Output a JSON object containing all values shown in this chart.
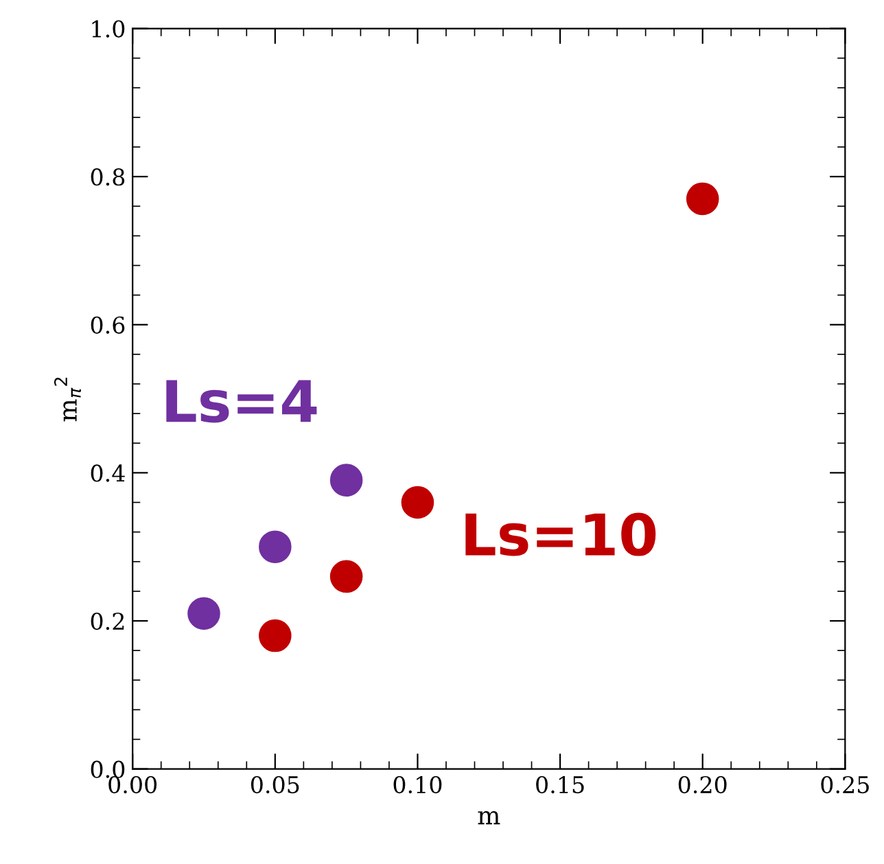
{
  "chart_data": {
    "type": "scatter",
    "xlabel": "m",
    "ylabel": "m$_{π}$$^{2}$",
    "series": [
      {
        "name": "Ls=4",
        "color": "#7030a0",
        "x": [
          0.025,
          0.05,
          0.075
        ],
        "values": [
          0.21,
          0.3,
          0.39
        ]
      },
      {
        "name": "Ls=10",
        "color": "#c00000",
        "x": [
          0.05,
          0.075,
          0.1,
          0.2
        ],
        "values": [
          0.18,
          0.26,
          0.36,
          0.77
        ]
      }
    ],
    "xlim": [
      0.0,
      0.25
    ],
    "xticks": [
      {
        "value": 0.0,
        "label": "0.00"
      },
      {
        "value": 0.05,
        "label": "0.05"
      },
      {
        "value": 0.1,
        "label": "0.10"
      },
      {
        "value": 0.15,
        "label": "0.15"
      },
      {
        "value": 0.2,
        "label": "0.20"
      },
      {
        "value": 0.25,
        "label": "0.25"
      }
    ],
    "ylim": [
      0.0,
      1.0
    ],
    "yticks": [
      {
        "value": 0.0,
        "label": "0.0"
      },
      {
        "value": 0.2,
        "label": "0.2"
      },
      {
        "value": 0.4,
        "label": "0.4"
      },
      {
        "value": 0.6,
        "label": "0.6"
      },
      {
        "value": 0.8,
        "label": "0.8"
      },
      {
        "value": 1.0,
        "label": "1.0"
      }
    ],
    "marker": "circle",
    "grid": false,
    "legend": false
  }
}
